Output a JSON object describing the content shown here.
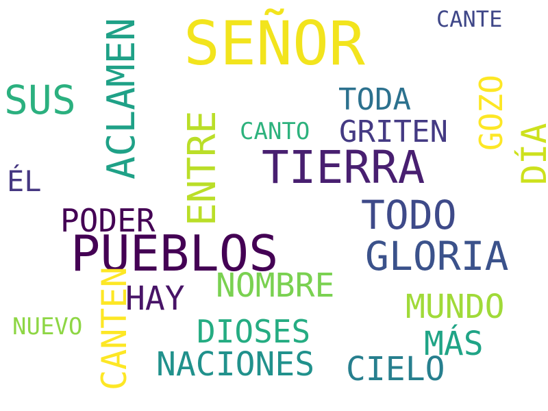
{
  "words": {
    "senor": "SEÑOR",
    "cante": "CANTE",
    "sus": "SUS",
    "toda": "TODA",
    "canto": "CANTO",
    "griten": "GRITEN",
    "tierra": "TIERRA",
    "el": "ÉL",
    "todo": "TODO",
    "poder": "PODER",
    "pueblos": "PUEBLOS",
    "gloria": "GLORIA",
    "nombre": "NOMBRE",
    "hay": "HAY",
    "mundo": "MUNDO",
    "nuevo": "NUEVO",
    "dioses": "DIOSES",
    "mas": "MÁS",
    "naciones": "NACIONES",
    "cielo": "CIELO",
    "aclamen": "ACLAMEN",
    "entre": "ENTRE",
    "gozo": "GOZO",
    "dia": "DÍA",
    "canten": "CANTEN"
  },
  "colors": {
    "background": "#ffffff",
    "palette": [
      "#440154",
      "#481f70",
      "#443a83",
      "#3b528b",
      "#2c718e",
      "#21918c",
      "#25ac82",
      "#7ad151",
      "#bade28",
      "#fde725"
    ]
  }
}
